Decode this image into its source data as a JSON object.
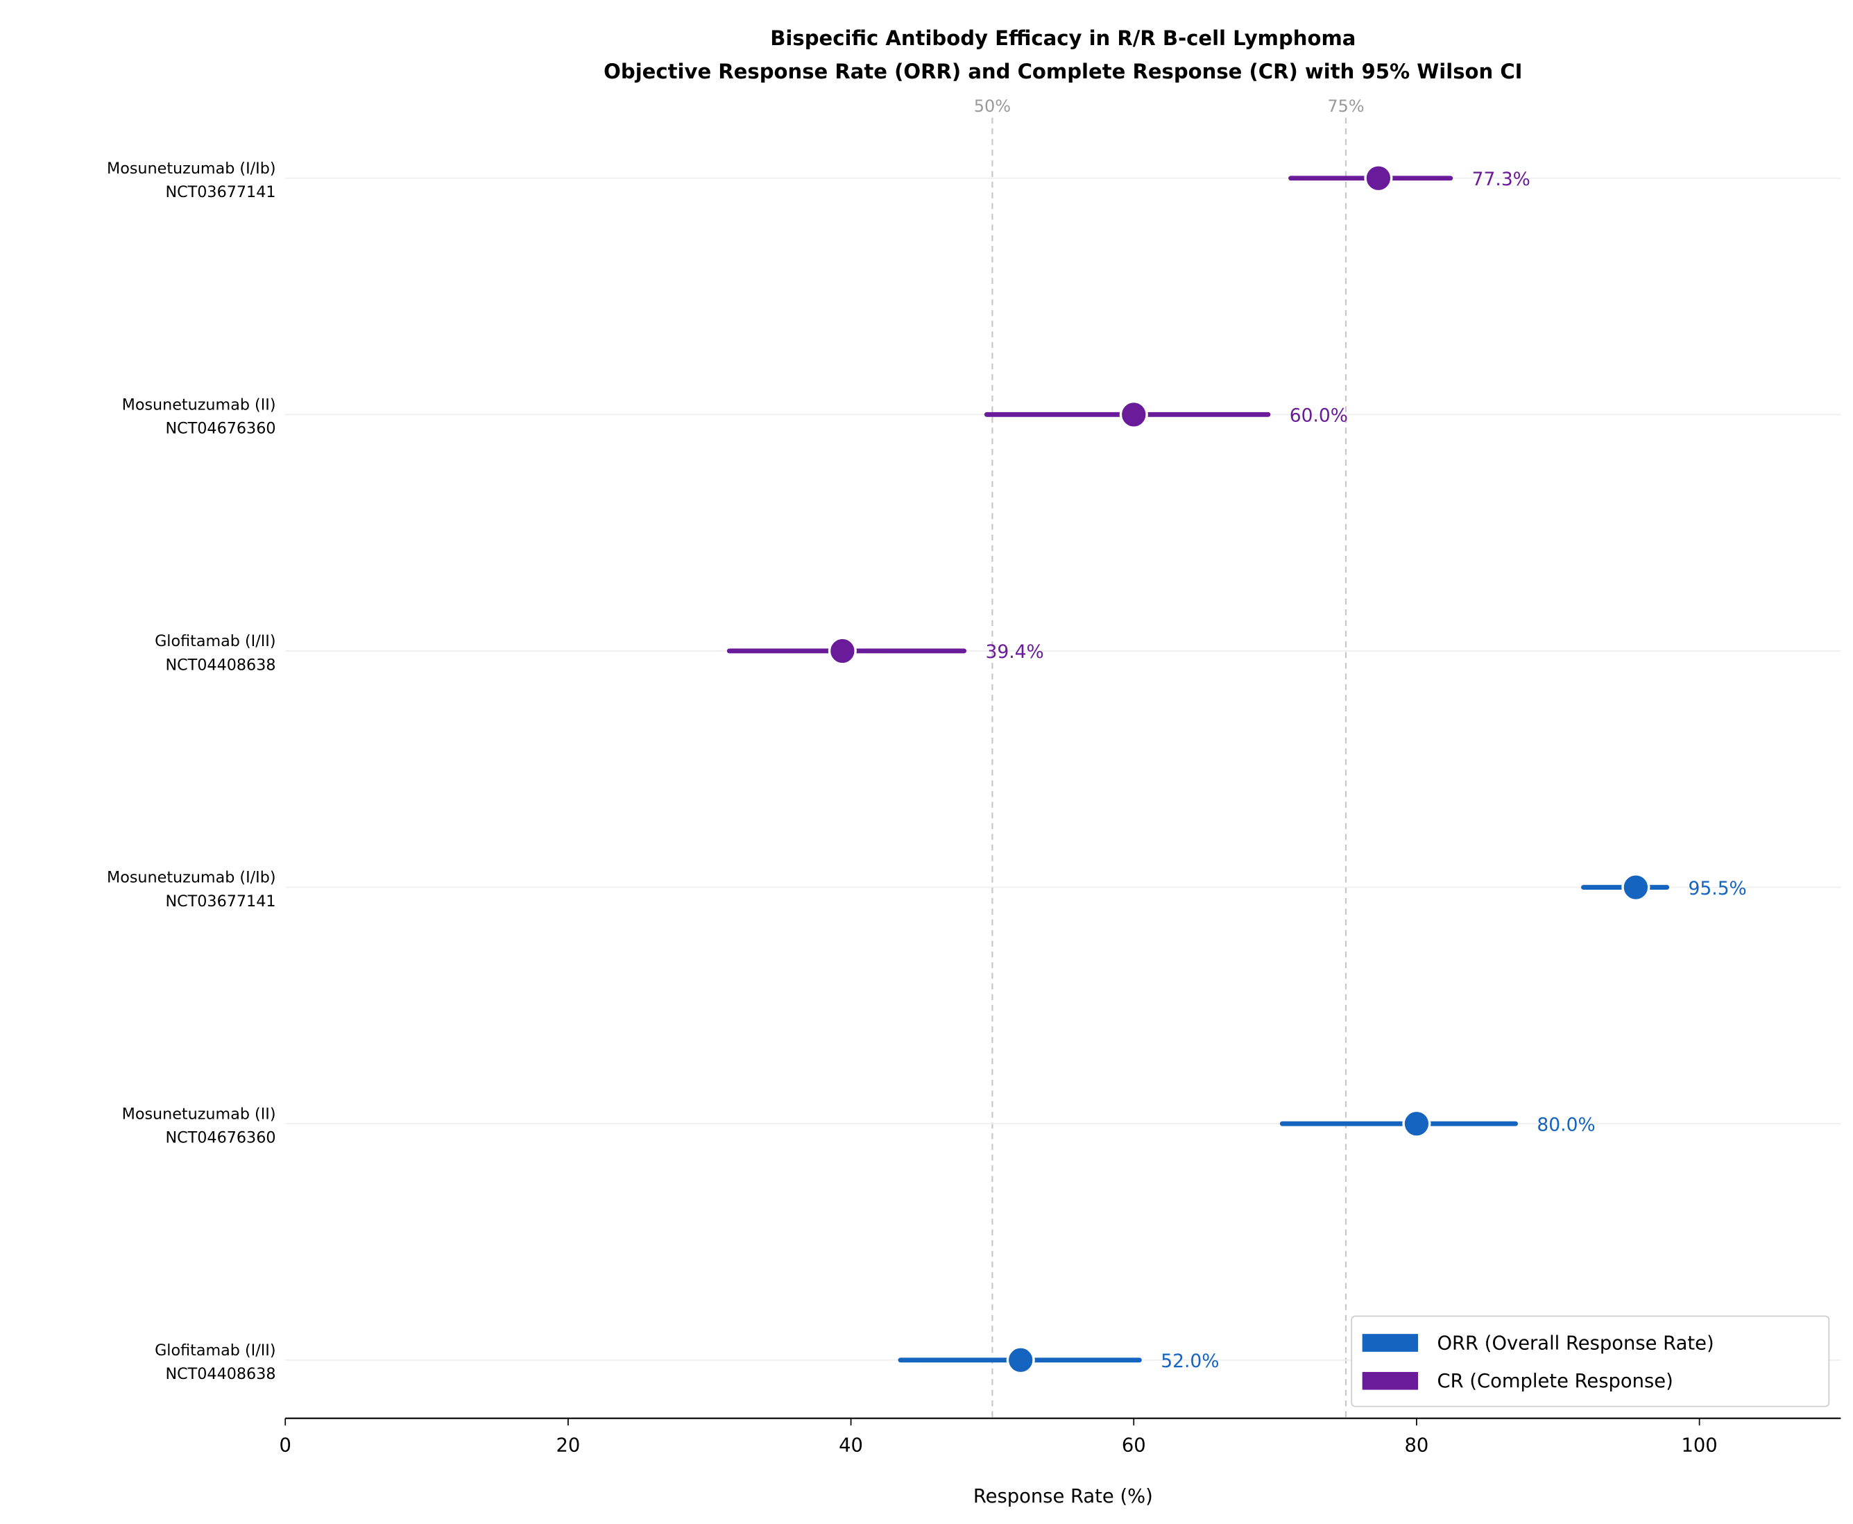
{
  "chart_data": {
    "type": "forest",
    "title": "Bispecific Antibody Efficacy in R/R B-cell Lymphoma",
    "subtitle": "Objective Response Rate (ORR) and Complete Response (CR) with 95% Wilson CI",
    "xlabel": "Response Rate (%)",
    "xlim": [
      0,
      110
    ],
    "xticks": [
      0,
      20,
      40,
      60,
      80,
      100
    ],
    "reference_lines": [
      {
        "value": 50,
        "label": "50%"
      },
      {
        "value": 75,
        "label": "75%"
      }
    ],
    "grid": "horizontal row lines only",
    "legend": {
      "placement": "bottom-right",
      "entries": [
        {
          "label": "ORR (Overall Response Rate)",
          "color": "#1565c0"
        },
        {
          "label": "CR (Complete Response)",
          "color": "#6a1b9a"
        }
      ]
    },
    "rows": [
      {
        "label": "Mosunetuzumab (I/Ib)",
        "trial": "NCT03677141",
        "metric": "CR",
        "value": 77.3,
        "ci": [
          71.1,
          82.4
        ],
        "value_label": "77.3%",
        "color": "#6a1b9a"
      },
      {
        "label": "Mosunetuzumab (II)",
        "trial": "NCT04676360",
        "metric": "CR",
        "value": 60.0,
        "ci": [
          49.6,
          69.5
        ],
        "value_label": "60.0%",
        "color": "#6a1b9a"
      },
      {
        "label": "Glofitamab (I/II)",
        "trial": "NCT04408638",
        "metric": "CR",
        "value": 39.4,
        "ci": [
          31.4,
          48.0
        ],
        "value_label": "39.4%",
        "color": "#6a1b9a"
      },
      {
        "label": "Mosunetuzumab (I/Ib)",
        "trial": "NCT03677141",
        "metric": "ORR",
        "value": 95.5,
        "ci": [
          91.8,
          97.7
        ],
        "value_label": "95.5%",
        "color": "#1565c0"
      },
      {
        "label": "Mosunetuzumab (II)",
        "trial": "NCT04676360",
        "metric": "ORR",
        "value": 80.0,
        "ci": [
          70.5,
          87.0
        ],
        "value_label": "80.0%",
        "color": "#1565c0"
      },
      {
        "label": "Glofitamab (I/II)",
        "trial": "NCT04408638",
        "metric": "ORR",
        "value": 52.0,
        "ci": [
          43.5,
          60.4
        ],
        "value_label": "52.0%",
        "color": "#1565c0"
      }
    ]
  }
}
